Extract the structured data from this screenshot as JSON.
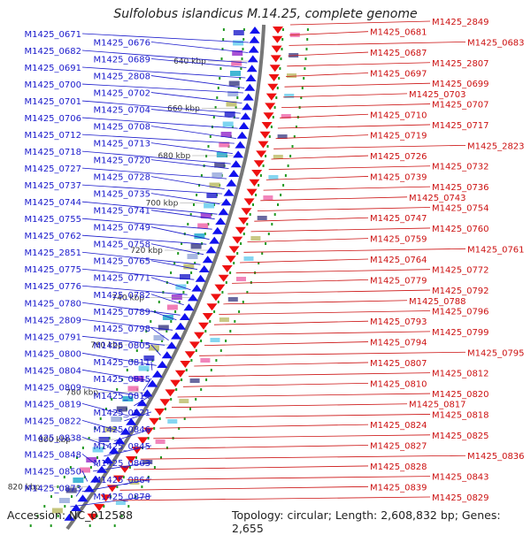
{
  "title": "Sulfolobus islandicus M.14.25, complete genome",
  "accession": "Accession: NC_012588",
  "summary": "Topology: circular; Length: 2,608,832 bp; Genes: 2,655",
  "colors": {
    "left_label": "#1a1acc",
    "right_label": "#cc1111",
    "left_gene": "#1111ee",
    "right_gene": "#ee1111",
    "backbone": "#777777",
    "tick": "#229922",
    "kbp_text": "#333333"
  },
  "kbp_ticks": [
    "640 kbp",
    "660 kbp",
    "680 kbp",
    "700 kbp",
    "720 kbp",
    "740 kbp",
    "760 kbp",
    "780 kbp",
    "800 kbp",
    "820 kbp"
  ],
  "left_genes": [
    "M1425_0671",
    "M1425_0676",
    "M1425_0682",
    "M1425_0689",
    "M1425_0691",
    "M1425_2808",
    "M1425_0700",
    "M1425_0702",
    "M1425_0701",
    "M1425_0704",
    "M1425_0706",
    "M1425_0708",
    "M1425_0712",
    "M1425_0713",
    "M1425_0718",
    "M1425_0720",
    "M1425_0727",
    "M1425_0728",
    "M1425_0737",
    "M1425_0735",
    "M1425_0744",
    "M1425_0741",
    "M1425_0755",
    "M1425_0749",
    "M1425_0762",
    "M1425_0758",
    "M1425_2851",
    "M1425_0765",
    "M1425_0775",
    "M1425_0771",
    "M1425_0776",
    "M1425_0782",
    "M1425_0780",
    "M1425_0789",
    "M1425_2809",
    "M1425_0798",
    "M1425_0791",
    "M1425_0805",
    "M1425_0800",
    "M1425_0811",
    "M1425_0804",
    "M1425_0815",
    "M1425_0809",
    "M1425_0814",
    "M1425_0819",
    "M1425_0821",
    "M1425_0822",
    "M1425_0846",
    "M1425_0838",
    "M1425_0845",
    "M1425_0848",
    "M1425_0863",
    "M1425_0850",
    "M1425_0864",
    "M1425_0873",
    "M1425_0878"
  ],
  "right_genes": [
    "M1425_2849",
    "M1425_0681",
    "M1425_0683",
    "M1425_0687",
    "M1425_2807",
    "M1425_0697",
    "M1425_0699",
    "M1425_0703",
    "M1425_0707",
    "M1425_0710",
    "M1425_0717",
    "M1425_0719",
    "M1425_2823",
    "M1425_0726",
    "M1425_0732",
    "M1425_0739",
    "M1425_0736",
    "M1425_0743",
    "M1425_0754",
    "M1425_0747",
    "M1425_0760",
    "M1425_0759",
    "M1425_0761",
    "M1425_0764",
    "M1425_0772",
    "M1425_0779",
    "M1425_0792",
    "M1425_0788",
    "M1425_0796",
    "M1425_0793",
    "M1425_0799",
    "M1425_0794",
    "M1425_0795",
    "M1425_0807",
    "M1425_0812",
    "M1425_0810",
    "M1425_0820",
    "M1425_0817",
    "M1425_0818",
    "M1425_0824",
    "M1425_0825",
    "M1425_0827",
    "M1425_0836",
    "M1425_0828",
    "M1425_0843",
    "M1425_0839",
    "M1425_0829"
  ]
}
